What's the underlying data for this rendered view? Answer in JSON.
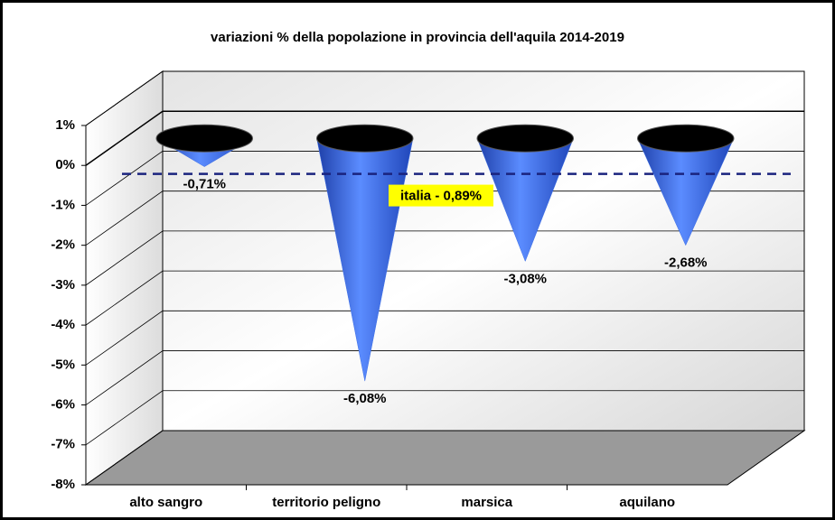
{
  "chart_data": {
    "type": "bar",
    "title": "variazioni % della popolazione in provincia dell'aquila 2014-2019",
    "categories": [
      "alto sangro",
      "territorio peligno",
      "marsica",
      "aquilano"
    ],
    "values": [
      -0.71,
      -6.08,
      -3.08,
      -2.68
    ],
    "value_labels": [
      "-0,71%",
      "-6,08%",
      "-3,08%",
      "-2,68%"
    ],
    "color": "#3d6fe6",
    "ylim": [
      -8,
      1
    ],
    "yticks": [
      {
        "value": 1,
        "label": "1%"
      },
      {
        "value": 0,
        "label": "0%"
      },
      {
        "value": -1,
        "label": "-1%"
      },
      {
        "value": -2,
        "label": "-2%"
      },
      {
        "value": -3,
        "label": "-3%"
      },
      {
        "value": -4,
        "label": "-4%"
      },
      {
        "value": -5,
        "label": "-5%"
      },
      {
        "value": -6,
        "label": "-6%"
      },
      {
        "value": -7,
        "label": "-7%"
      },
      {
        "value": -8,
        "label": "-8%"
      }
    ],
    "grid": true,
    "reference_line": {
      "value": -0.89,
      "label": "italia - 0,89%",
      "color": "#1a237e"
    }
  }
}
